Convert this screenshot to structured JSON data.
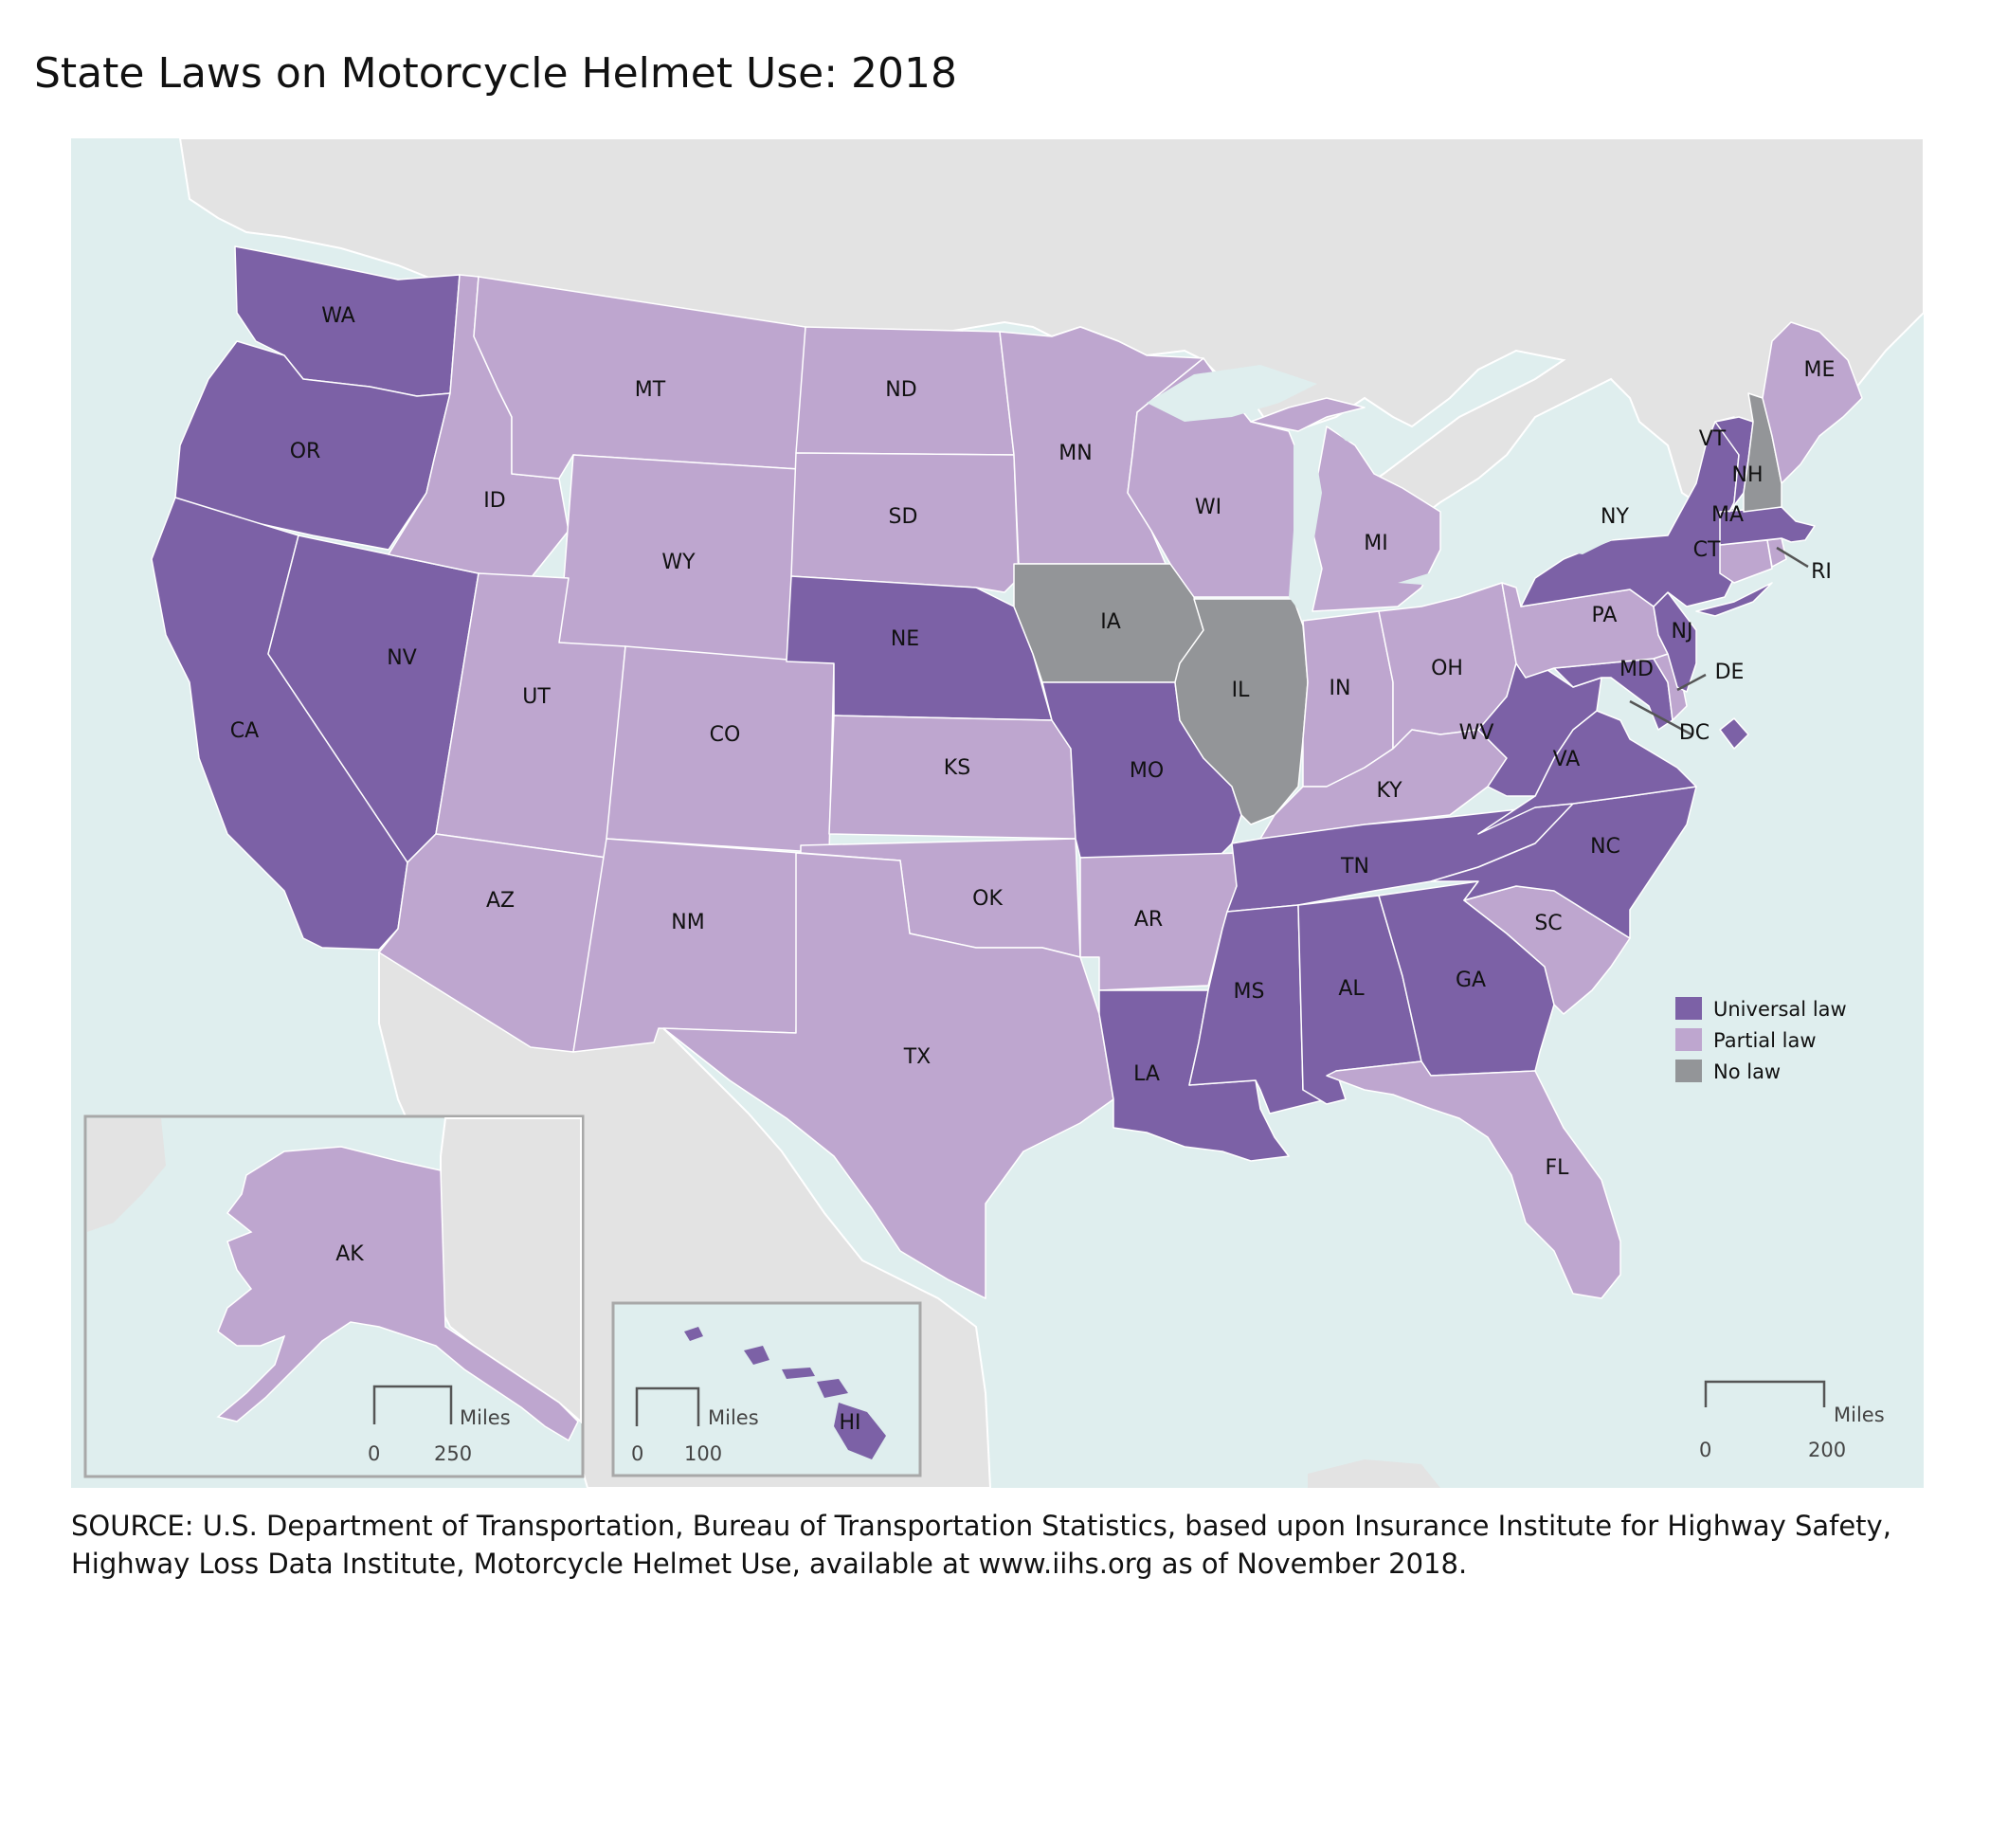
{
  "title": "State Laws on Motorcycle Helmet Use: 2018",
  "source_note": "SOURCE: U.S. Department of Transportation, Bureau of Transportation Statistics, based upon Insurance Institute for Highway Safety, Highway Loss Data Institute, Motorcycle Helmet Use, available at www.iihs.org as of November 2018.",
  "colors": {
    "universal": "#7c61a6",
    "partial": "#bea6cf",
    "none": "#939598",
    "water": "#dfeeee",
    "land_outside": "#e3e3e3",
    "state_border": "#ffffff",
    "inset_frame": "#a8a8a8"
  },
  "legend": [
    {
      "category": "universal",
      "label": "Universal law"
    },
    {
      "category": "partial",
      "label": "Partial law"
    },
    {
      "category": "none",
      "label": "No law"
    }
  ],
  "scale_bars": {
    "main": {
      "unit": "Miles",
      "start": "0",
      "end": "200"
    },
    "alaska": {
      "unit": "Miles",
      "start": "0",
      "end": "250"
    },
    "hawaii": {
      "unit": "Miles",
      "start": "0",
      "end": "100"
    }
  },
  "states": {
    "WA": {
      "label": "WA",
      "law": "universal"
    },
    "OR": {
      "label": "OR",
      "law": "universal"
    },
    "CA": {
      "label": "CA",
      "law": "universal"
    },
    "NV": {
      "label": "NV",
      "law": "universal"
    },
    "ID": {
      "label": "ID",
      "law": "partial"
    },
    "MT": {
      "label": "MT",
      "law": "partial"
    },
    "WY": {
      "label": "WY",
      "law": "partial"
    },
    "UT": {
      "label": "UT",
      "law": "partial"
    },
    "AZ": {
      "label": "AZ",
      "law": "partial"
    },
    "CO": {
      "label": "CO",
      "law": "partial"
    },
    "NM": {
      "label": "NM",
      "law": "partial"
    },
    "ND": {
      "label": "ND",
      "law": "partial"
    },
    "SD": {
      "label": "SD",
      "law": "partial"
    },
    "NE": {
      "label": "NE",
      "law": "universal"
    },
    "KS": {
      "label": "KS",
      "law": "partial"
    },
    "OK": {
      "label": "OK",
      "law": "partial"
    },
    "TX": {
      "label": "TX",
      "law": "partial"
    },
    "MN": {
      "label": "MN",
      "law": "partial"
    },
    "IA": {
      "label": "IA",
      "law": "none"
    },
    "MO": {
      "label": "MO",
      "law": "universal"
    },
    "AR": {
      "label": "AR",
      "law": "partial"
    },
    "LA": {
      "label": "LA",
      "law": "universal"
    },
    "WI": {
      "label": "WI",
      "law": "partial"
    },
    "IL": {
      "label": "IL",
      "law": "none"
    },
    "MI": {
      "label": "MI",
      "law": "partial"
    },
    "IN": {
      "label": "IN",
      "law": "partial"
    },
    "OH": {
      "label": "OH",
      "law": "partial"
    },
    "KY": {
      "label": "KY",
      "law": "partial"
    },
    "TN": {
      "label": "TN",
      "law": "universal"
    },
    "MS": {
      "label": "MS",
      "law": "universal"
    },
    "AL": {
      "label": "AL",
      "law": "universal"
    },
    "GA": {
      "label": "GA",
      "law": "universal"
    },
    "FL": {
      "label": "FL",
      "law": "partial"
    },
    "SC": {
      "label": "SC",
      "law": "partial"
    },
    "NC": {
      "label": "NC",
      "law": "universal"
    },
    "VA": {
      "label": "VA",
      "law": "universal"
    },
    "WV": {
      "label": "WV",
      "law": "universal"
    },
    "MD": {
      "label": "MD",
      "law": "universal"
    },
    "DE": {
      "label": "DE",
      "law": "partial"
    },
    "DC": {
      "label": "DC",
      "law": "universal"
    },
    "PA": {
      "label": "PA",
      "law": "partial"
    },
    "NJ": {
      "label": "NJ",
      "law": "universal"
    },
    "NY": {
      "label": "NY",
      "law": "universal"
    },
    "CT": {
      "label": "CT",
      "law": "partial"
    },
    "RI": {
      "label": "RI",
      "law": "partial"
    },
    "MA": {
      "label": "MA",
      "law": "universal"
    },
    "VT": {
      "label": "VT",
      "law": "universal"
    },
    "NH": {
      "label": "NH",
      "law": "none"
    },
    "ME": {
      "label": "ME",
      "law": "partial"
    },
    "AK": {
      "label": "AK",
      "law": "partial"
    },
    "HI": {
      "label": "HI",
      "law": "universal"
    }
  }
}
